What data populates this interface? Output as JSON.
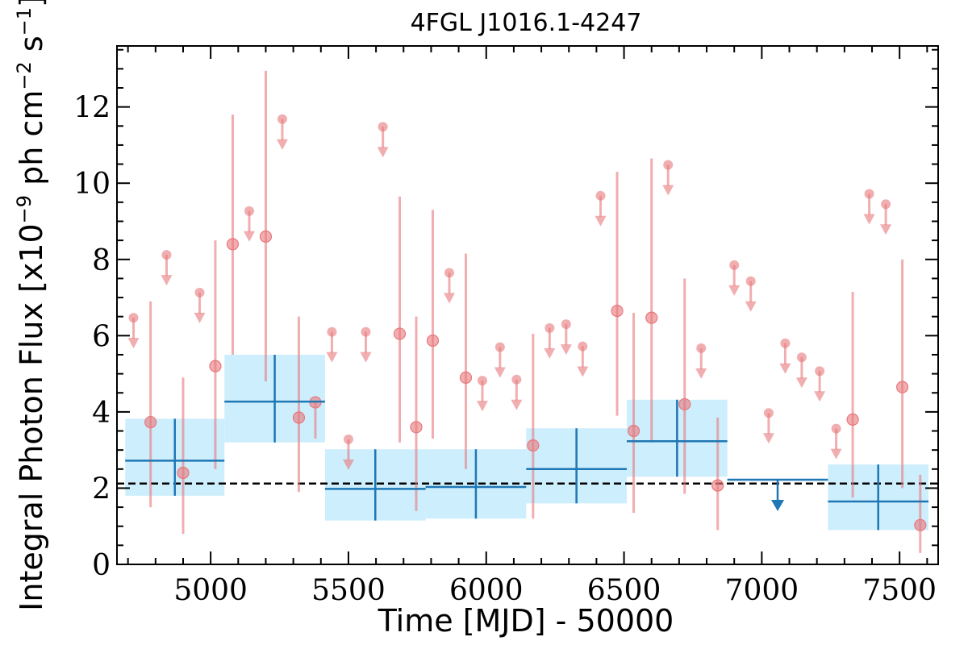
{
  "chart_data": {
    "type": "scatter",
    "title": "4FGL J1016.1-4247",
    "xlabel": "Time [MJD] - 50000",
    "ylabel": "Integral Photon Flux [x10",
    "ylabel_exp": "−9",
    "ylabel_units": " ph cm",
    "ylabel_exp2": "−2",
    "ylabel_s": " s",
    "ylabel_exp3": "−1",
    "ylabel_end": "]",
    "xlim": [
      4660,
      7640
    ],
    "ylim": [
      0,
      13.6
    ],
    "x_ticks": [
      5000,
      5500,
      6000,
      6500,
      7000,
      7500
    ],
    "y_ticks": [
      0,
      2,
      4,
      6,
      8,
      10,
      12
    ],
    "mean_flux": 2.12,
    "colors": {
      "short_points": "#e8787c",
      "long_bins": "#1f77b4",
      "long_band": "#cdeefc",
      "mean_line": "#000000"
    },
    "long_bins": [
      {
        "x0": 4690,
        "x1": 5050,
        "y": 2.72,
        "ylo": 1.8,
        "yhi": 3.82
      },
      {
        "x0": 5050,
        "x1": 5415,
        "y": 4.27,
        "ylo": 3.2,
        "yhi": 5.5
      },
      {
        "x0": 5415,
        "x1": 5780,
        "y": 1.98,
        "ylo": 1.15,
        "yhi": 3.02
      },
      {
        "x0": 5780,
        "x1": 6145,
        "y": 2.03,
        "ylo": 1.2,
        "yhi": 3.02
      },
      {
        "x0": 6145,
        "x1": 6510,
        "y": 2.5,
        "ylo": 1.6,
        "yhi": 3.57
      },
      {
        "x0": 6510,
        "x1": 6875,
        "y": 3.23,
        "ylo": 2.3,
        "yhi": 4.32
      },
      {
        "x0": 7240,
        "x1": 7605,
        "y": 1.65,
        "ylo": 0.9,
        "yhi": 2.62
      }
    ],
    "long_upper_limits": [
      {
        "x0": 6875,
        "x1": 7240,
        "y": 2.22
      }
    ],
    "short_points": [
      {
        "x": 4782,
        "y": 3.73,
        "ylo": 1.5,
        "yhi": 6.9
      },
      {
        "x": 4900,
        "y": 2.4,
        "ylo": 0.8,
        "yhi": 4.9
      },
      {
        "x": 5017,
        "y": 5.2,
        "ylo": 2.5,
        "yhi": 8.5
      },
      {
        "x": 5080,
        "y": 8.4,
        "ylo": 5.5,
        "yhi": 11.8
      },
      {
        "x": 5200,
        "y": 8.6,
        "ylo": 4.8,
        "yhi": 12.95
      },
      {
        "x": 5320,
        "y": 3.85,
        "ylo": 1.9,
        "yhi": 6.5
      },
      {
        "x": 5380,
        "y": 4.25,
        "ylo": 3.3,
        "yhi": 4.25
      },
      {
        "x": 5686,
        "y": 6.05,
        "ylo": 3.2,
        "yhi": 9.65
      },
      {
        "x": 5746,
        "y": 3.6,
        "ylo": 1.4,
        "yhi": 6.5
      },
      {
        "x": 5806,
        "y": 5.87,
        "ylo": 3.3,
        "yhi": 9.3
      },
      {
        "x": 5926,
        "y": 4.9,
        "ylo": 2.5,
        "yhi": 8.15
      },
      {
        "x": 6170,
        "y": 3.12,
        "ylo": 1.2,
        "yhi": 6.05
      },
      {
        "x": 6475,
        "y": 6.65,
        "ylo": 3.9,
        "yhi": 10.3
      },
      {
        "x": 6535,
        "y": 3.5,
        "ylo": 1.35,
        "yhi": 6.6
      },
      {
        "x": 6600,
        "y": 6.47,
        "ylo": 3.2,
        "yhi": 10.65
      },
      {
        "x": 6720,
        "y": 4.2,
        "ylo": 1.85,
        "yhi": 7.5
      },
      {
        "x": 6840,
        "y": 2.07,
        "ylo": 0.9,
        "yhi": 3.85
      },
      {
        "x": 7330,
        "y": 3.8,
        "ylo": 1.75,
        "yhi": 7.15
      },
      {
        "x": 7510,
        "y": 4.65,
        "ylo": 2.0,
        "yhi": 8.0
      },
      {
        "x": 7575,
        "y": 1.03,
        "ylo": 0.3,
        "yhi": 2.35
      }
    ],
    "short_upper_limits": [
      {
        "x": 4720,
        "y": 6.47
      },
      {
        "x": 4840,
        "y": 8.12
      },
      {
        "x": 4960,
        "y": 7.13
      },
      {
        "x": 5140,
        "y": 9.27
      },
      {
        "x": 5260,
        "y": 11.68
      },
      {
        "x": 5440,
        "y": 6.1
      },
      {
        "x": 5500,
        "y": 3.28
      },
      {
        "x": 5563,
        "y": 6.1
      },
      {
        "x": 5625,
        "y": 11.48
      },
      {
        "x": 5866,
        "y": 7.65
      },
      {
        "x": 5986,
        "y": 4.82
      },
      {
        "x": 6050,
        "y": 5.7
      },
      {
        "x": 6110,
        "y": 4.85
      },
      {
        "x": 6230,
        "y": 6.2
      },
      {
        "x": 6290,
        "y": 6.3
      },
      {
        "x": 6350,
        "y": 5.72
      },
      {
        "x": 6415,
        "y": 9.67
      },
      {
        "x": 6660,
        "y": 10.48
      },
      {
        "x": 6780,
        "y": 5.67
      },
      {
        "x": 6900,
        "y": 7.85
      },
      {
        "x": 6960,
        "y": 7.43
      },
      {
        "x": 7025,
        "y": 3.97
      },
      {
        "x": 7085,
        "y": 5.8
      },
      {
        "x": 7145,
        "y": 5.43
      },
      {
        "x": 7210,
        "y": 5.07
      },
      {
        "x": 7270,
        "y": 3.56
      },
      {
        "x": 7390,
        "y": 9.72
      },
      {
        "x": 7450,
        "y": 9.45
      }
    ]
  }
}
